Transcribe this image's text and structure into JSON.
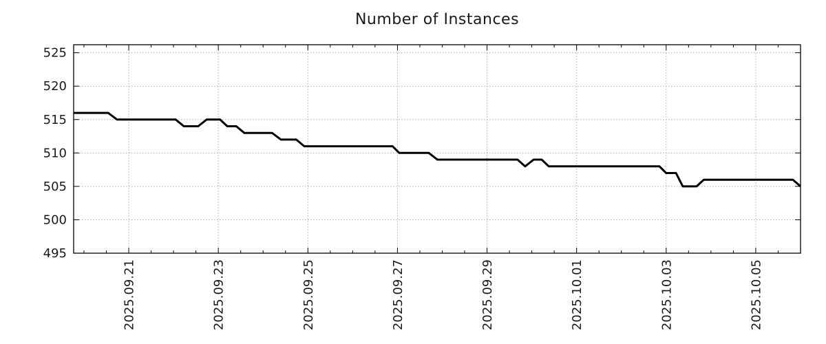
{
  "chart_data": {
    "type": "line",
    "title": "Number of Instances",
    "legend": "none",
    "grid": "dotted at major ticks",
    "x_axis": {
      "unit": "days since 2025-09-21 00:00",
      "range": [
        -1.23,
        15.0
      ],
      "minor_tick_interval_days": 0.5,
      "major_ticks": [
        {
          "day": 0,
          "label": "2025.09.21"
        },
        {
          "day": 2,
          "label": "2025.09.23"
        },
        {
          "day": 4,
          "label": "2025.09.25"
        },
        {
          "day": 6,
          "label": "2025.09.27"
        },
        {
          "day": 8,
          "label": "2025.09.29"
        },
        {
          "day": 10,
          "label": "2025.10.01"
        },
        {
          "day": 12,
          "label": "2025.10.03"
        },
        {
          "day": 14,
          "label": "2025.10.05"
        }
      ]
    },
    "y_axis": {
      "range": [
        495,
        526.2
      ],
      "ticks": [
        {
          "value": 495,
          "label": "495"
        },
        {
          "value": 500,
          "label": "500"
        },
        {
          "value": 505,
          "label": "505"
        },
        {
          "value": 510,
          "label": "510"
        },
        {
          "value": 515,
          "label": "515"
        },
        {
          "value": 520,
          "label": "520"
        },
        {
          "value": 525,
          "label": "525"
        }
      ]
    },
    "series": [
      {
        "name": "instances",
        "color": "#000000",
        "line_width": 3,
        "points_day_value": [
          [
            -1.23,
            516
          ],
          [
            -0.46,
            516
          ],
          [
            -0.26,
            515
          ],
          [
            1.05,
            515
          ],
          [
            1.23,
            514
          ],
          [
            1.55,
            514
          ],
          [
            1.74,
            515
          ],
          [
            2.04,
            515
          ],
          [
            2.2,
            514
          ],
          [
            2.4,
            514
          ],
          [
            2.58,
            513
          ],
          [
            3.2,
            513
          ],
          [
            3.4,
            512
          ],
          [
            3.74,
            512
          ],
          [
            3.92,
            511
          ],
          [
            5.89,
            511
          ],
          [
            6.04,
            510
          ],
          [
            6.7,
            510
          ],
          [
            6.89,
            509
          ],
          [
            8.68,
            509
          ],
          [
            8.85,
            508
          ],
          [
            9.04,
            509
          ],
          [
            9.22,
            509
          ],
          [
            9.38,
            508
          ],
          [
            11.85,
            508
          ],
          [
            12.0,
            507
          ],
          [
            12.22,
            507
          ],
          [
            12.37,
            505
          ],
          [
            12.68,
            505
          ],
          [
            12.84,
            506
          ],
          [
            14.83,
            506
          ],
          [
            15.0,
            505
          ]
        ]
      }
    ],
    "colors": {
      "line": "#000000",
      "grid": "#ababab",
      "axis": "#000000",
      "text": "#1a1a1a",
      "background": "#ffffff"
    }
  }
}
